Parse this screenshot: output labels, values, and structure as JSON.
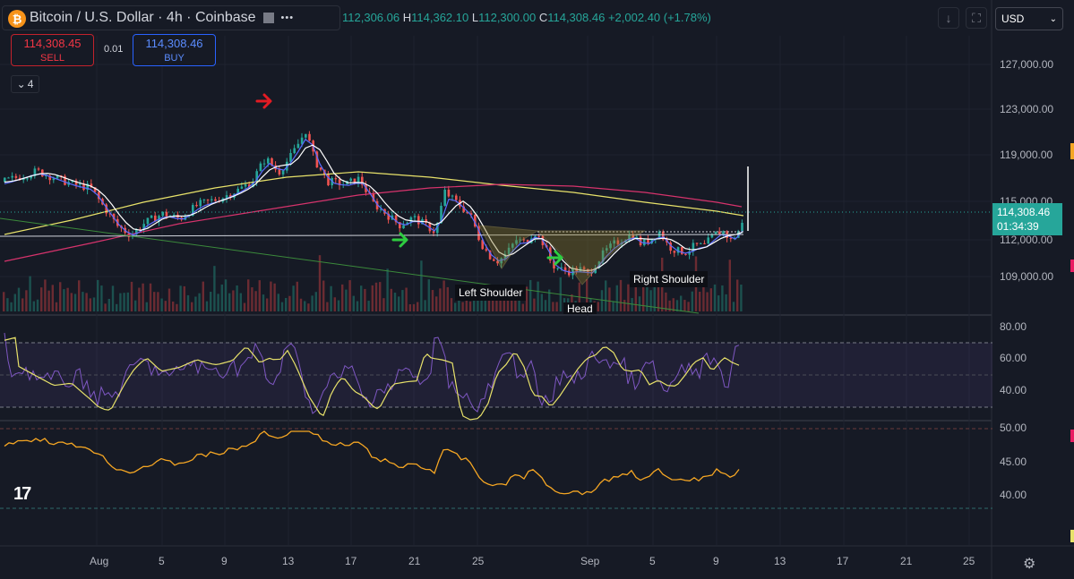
{
  "header": {
    "title": "Bitcoin / U.S. Dollar · 4h · Coinbase",
    "logo_glyph": "₿",
    "more_icon": "•••",
    "ohlc_open": "112,306.06",
    "ohlc_high_label": "H",
    "ohlc_high": "114,362.10",
    "ohlc_low_label": "L",
    "ohlc_low": "112,300.00",
    "ohlc_close_label": "C",
    "ohlc_close": "114,308.46",
    "change": "+2,002.40 (+1.78%)"
  },
  "trade": {
    "sell_price": "114,308.45",
    "sell_label": "SELL",
    "buy_price": "114,308.46",
    "buy_label": "BUY",
    "spread": "0.01"
  },
  "indicators_collapse": {
    "count": "4"
  },
  "currency": {
    "value": "USD"
  },
  "price_axis": {
    "labels": [
      "127,000.00",
      "123,000.00",
      "119,000.00",
      "115,000.00",
      "112,000.00",
      "109,000.00"
    ],
    "current_price": "114,308.46",
    "countdown": "01:34:39"
  },
  "rsi_axis": {
    "labels": [
      "80.00",
      "60.00",
      "40.00"
    ]
  },
  "osc_axis": {
    "labels": [
      "50.00",
      "45.00",
      "40.00"
    ]
  },
  "time_axis": {
    "labels": [
      "Aug",
      "5",
      "9",
      "13",
      "17",
      "21",
      "25",
      "Sep",
      "5",
      "9",
      "13",
      "17",
      "21",
      "25"
    ]
  },
  "annotations": {
    "left_shoulder": "Left Shoulder",
    "head": "Head",
    "right_shoulder": "Right Shoulder"
  },
  "colors": {
    "up": "#26a69a",
    "down": "#ef5350",
    "ma_white": "#ffffff",
    "ma_blue": "#5b6cff",
    "ma_yellow": "#e8e26a",
    "ma_magenta": "#d6336c",
    "rsi": "#7e57c2",
    "rsi_ma": "#e8e26a",
    "osc": "#f5a623",
    "arrow_red": "#e31b23",
    "arrow_green": "#2ecc40"
  }
}
